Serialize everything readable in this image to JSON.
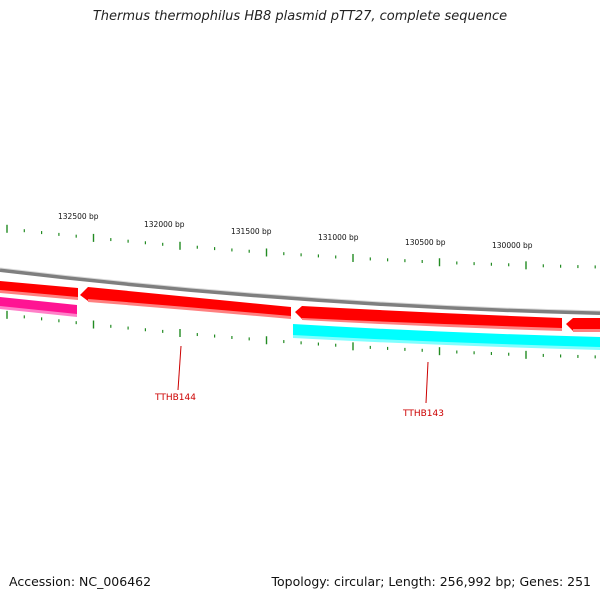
{
  "title": "Thermus thermophilus HB8 plasmid pTT27, complete sequence",
  "footer": {
    "accession": "Accession: NC_006462",
    "summary": "Topology: circular; Length: 256,992 bp; Genes: 251"
  },
  "ruler": {
    "labels": [
      "132500 bp",
      "132000 bp",
      "131500 bp",
      "131000 bp",
      "130500 bp",
      "130000 bp"
    ]
  },
  "genes": [
    {
      "label": "TTHB144",
      "strand": "forward",
      "color": "#ff0000"
    },
    {
      "label": "TTHB143",
      "strand": "forward",
      "color": "#ff0000"
    },
    {
      "label": "",
      "strand": "reverse",
      "color": "#00ffff"
    },
    {
      "label": "",
      "strand": "reverse",
      "color": "#ff1493"
    }
  ],
  "colors": {
    "backbone": "#808080",
    "forward_gene": "#ff0000",
    "reverse_gene_cyan": "#00ffff",
    "reverse_gene_pink": "#ff1493",
    "tick": "#228b22",
    "gene_label": "#cc0000"
  }
}
